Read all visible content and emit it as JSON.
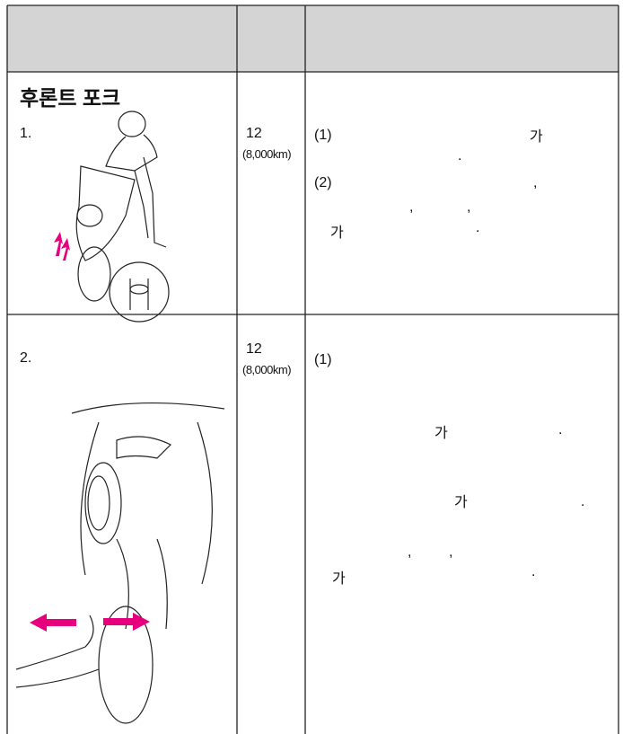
{
  "rows": [
    {
      "section_title": "후론트 포크",
      "number": "1.",
      "interval": "12",
      "distance": "(8,000km)",
      "notes": [
        "(1)",
        "가",
        ".",
        "(2)",
        ",",
        ",",
        ",",
        "가",
        "."
      ]
    },
    {
      "number": "2.",
      "interval": "12",
      "distance": "(8,000km)",
      "notes": [
        "(1)",
        "가",
        ".",
        "가",
        ".",
        ",",
        ",",
        "가",
        "."
      ]
    }
  ]
}
